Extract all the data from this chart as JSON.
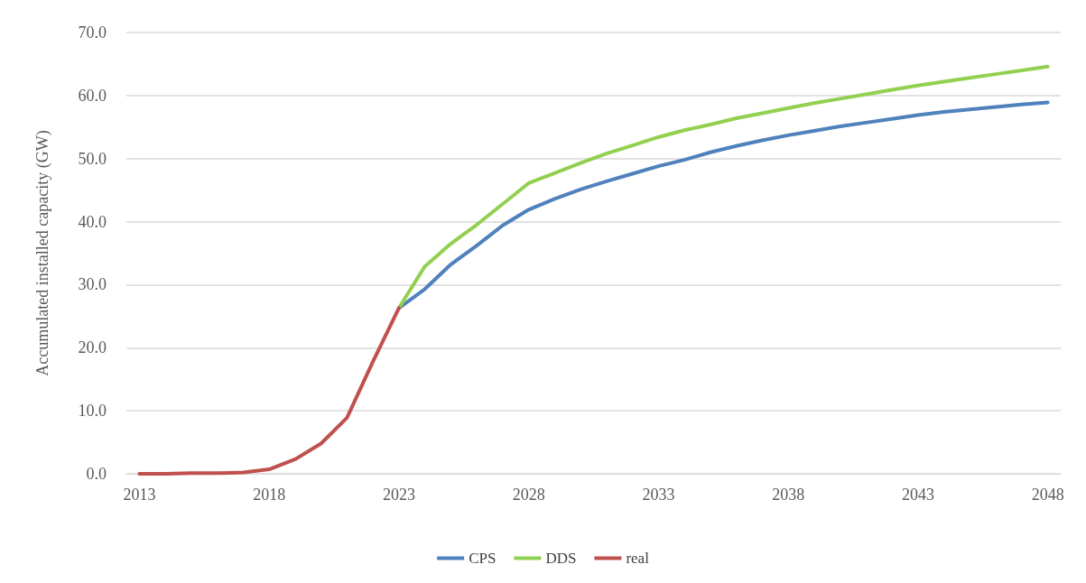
{
  "chart_data": {
    "type": "line",
    "ylabel": "Accumulated installed capacity (GW)",
    "categories": [
      "2013",
      null,
      null,
      null,
      null,
      "2018",
      null,
      null,
      null,
      null,
      "2023",
      null,
      null,
      null,
      null,
      "2028",
      null,
      null,
      null,
      null,
      "2033",
      null,
      null,
      null,
      null,
      "2038",
      null,
      null,
      null,
      null,
      "2043",
      null,
      null,
      null,
      null,
      "2048"
    ],
    "series": [
      {
        "name": "CPS",
        "color": "#4f81bd",
        "values": [
          null,
          null,
          null,
          null,
          null,
          null,
          null,
          null,
          null,
          null,
          26.3,
          29.3,
          33.2,
          36.2,
          39.4,
          41.9,
          43.6,
          45.1,
          46.4,
          47.6,
          48.8,
          49.8,
          51.0,
          52.0,
          52.9,
          53.7,
          54.4,
          55.1,
          55.7,
          56.3,
          56.9,
          57.4,
          57.8,
          58.2,
          58.6,
          58.9
        ]
      },
      {
        "name": "DDS",
        "color": "#92d050",
        "values": [
          null,
          null,
          null,
          null,
          null,
          null,
          null,
          null,
          null,
          null,
          26.3,
          32.9,
          36.5,
          39.5,
          42.8,
          46.1,
          47.7,
          49.3,
          50.8,
          52.1,
          53.4,
          54.5,
          55.4,
          56.4,
          57.2,
          58.0,
          58.8,
          59.5,
          60.2,
          60.9,
          61.6,
          62.2,
          62.8,
          63.4,
          64.0,
          64.6
        ]
      },
      {
        "name": "real",
        "color": "#c0504d",
        "values": [
          0,
          0,
          0.1,
          0.1,
          0.2,
          0.7,
          2.3,
          4.8,
          8.9,
          17.8,
          26.3,
          null,
          null,
          null,
          null,
          null,
          null,
          null,
          null,
          null,
          null,
          null,
          null,
          null,
          null,
          null,
          null,
          null,
          null,
          null,
          null,
          null,
          null,
          null,
          null,
          null
        ]
      }
    ],
    "ylim": [
      0,
      70
    ],
    "yticks": [
      {
        "value": 0,
        "label": "0.0"
      },
      {
        "value": 10,
        "label": "10.0"
      },
      {
        "value": 20,
        "label": "20.0"
      },
      {
        "value": 30,
        "label": "30.0"
      },
      {
        "value": 40,
        "label": "40.0"
      },
      {
        "value": 50,
        "label": "50.0"
      },
      {
        "value": 60,
        "label": "60.0"
      },
      {
        "value": 70,
        "label": "70.0"
      }
    ],
    "grid": "y",
    "legend": "bottom",
    "marker": "none",
    "line_style": "solid"
  }
}
